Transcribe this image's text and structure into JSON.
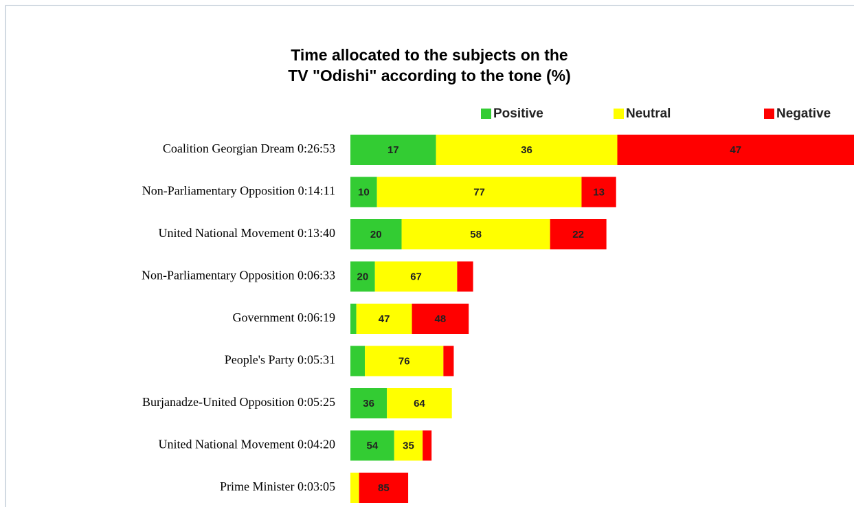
{
  "chart_data": {
    "type": "stacked-barh",
    "title": "Time allocated to the subjects on the",
    "subtitle": "TV \"Odishi\" according to the tone (%)",
    "categories": [
      "Coalition Georgian Dream 0:26:53",
      "Non-Parliamentary Opposition 0:14:11",
      "United National Movement 0:13:40",
      "Non-Parliamentary Opposition 0:06:33",
      "Government 0:06:19",
      "People's Party 0:05:31",
      "Burjanadze-United Opposition 0:05:25",
      "United National Movement 0:04:20",
      "Prime Minister 0:03:05"
    ],
    "series": [
      {
        "name": "Positive",
        "color": "#33cc33",
        "values": [
          17,
          10,
          20,
          20,
          5,
          14,
          36,
          54,
          0
        ]
      },
      {
        "name": "Neutral",
        "color": "#ffff00",
        "values": [
          36,
          77,
          58,
          67,
          47,
          76,
          64,
          35,
          15
        ]
      },
      {
        "name": "Negative",
        "color": "#ff0000",
        "values": [
          47,
          13,
          22,
          13,
          48,
          10,
          0,
          11,
          85
        ]
      }
    ],
    "legend": "top"
  }
}
